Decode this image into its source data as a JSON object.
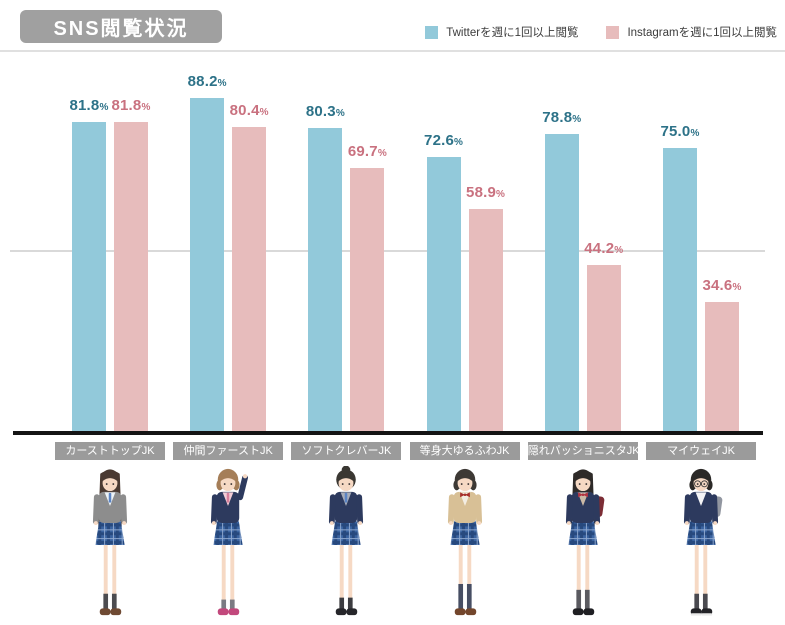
{
  "header": {
    "title": "SNS閲覧状況"
  },
  "legend": [
    {
      "label": "Twitterを週に1回以上閲覧",
      "color": "#92c9da"
    },
    {
      "label": "Instagramを週に1回以上閲覧",
      "color": "#e7bcbc"
    }
  ],
  "chart_data": {
    "type": "bar",
    "title": "SNS閲覧状況",
    "categories": [
      "カーストトップJK",
      "仲間ファーストJK",
      "ソフトクレバーJK",
      "等身大ゆるふわJK",
      "隠れパッショニスタJK",
      "マイウェイJK"
    ],
    "series": [
      {
        "name": "Twitterを週に1回以上閲覧",
        "color": "#92c9da",
        "label_color": "#2d7288",
        "values": [
          81.8,
          88.2,
          80.3,
          72.6,
          78.8,
          75.0
        ]
      },
      {
        "name": "Instagramを週に1回以上閲覧",
        "color": "#e7bcbc",
        "label_color": "#c9717f",
        "values": [
          81.8,
          80.4,
          69.7,
          58.9,
          44.2,
          34.6
        ]
      }
    ],
    "unit": "%",
    "ylim": [
      0,
      100
    ],
    "grid": "one light horizontal gridline near mid-height",
    "legend_position": "top-right",
    "value_labels": "above each bar, one decimal place with small % sign"
  },
  "characters": [
    {
      "category": "カーストトップJK",
      "hair_style": "long",
      "hair": "#4a3a32",
      "top": "#8d8d8d",
      "inner": "#eef4f8",
      "accent": "#5b84c4",
      "accent_type": "tie",
      "sock": "#4c4c50",
      "sock_len": 16,
      "shoe": "#6f4a33",
      "bag": null,
      "glasses": false,
      "raised": false
    },
    {
      "category": "仲間ファーストJK",
      "hair_style": "short",
      "hair": "#a57e58",
      "top": "#2d3a5e",
      "inner": "#f2cdd6",
      "accent": "#d77f9a",
      "accent_type": "tie",
      "sock": "#7b7b83",
      "sock_len": 10,
      "shoe": "#c2487c",
      "bag": null,
      "glasses": false,
      "raised": true
    },
    {
      "category": "ソフトクレバーJK",
      "hair_style": "bun",
      "hair": "#3a3732",
      "top": "#2d3a5e",
      "inner": "#a9aeb9",
      "accent": "#5b84c4",
      "accent_type": "tie",
      "sock": "#3c3c40",
      "sock_len": 12,
      "shoe": "#26262a",
      "bag": null,
      "glasses": false,
      "raised": false
    },
    {
      "category": "等身大ゆるふわJK",
      "hair_style": "bob",
      "hair": "#3d3935",
      "top": "#d8c096",
      "inner": "#f3ede2",
      "accent": "#a62f2a",
      "accent_type": "bow",
      "sock": "#474e63",
      "sock_len": 26,
      "shoe": "#73462c",
      "bag": null,
      "glasses": false,
      "raised": false
    },
    {
      "category": "隠れパッショニスタJK",
      "hair_style": "long",
      "hair": "#2e2a28",
      "top": "#2d3a5e",
      "inner": "#cbb9a6",
      "accent": "#b23342",
      "accent_type": "bow",
      "sock": "#5a5a60",
      "sock_len": 20,
      "shoe": "#1f1f23",
      "bag": "#7c2d35",
      "glasses": false,
      "raised": false
    },
    {
      "category": "マイウェイJK",
      "hair_style": "bob",
      "hair": "#2b2927",
      "top": "#2d3a5e",
      "inner": "#f4f4f6",
      "accent": null,
      "accent_type": null,
      "sock": "#4a4a50",
      "sock_len": 16,
      "shoe": "#232327",
      "bag": "#9196a0",
      "glasses": true,
      "raised": false
    }
  ],
  "palette": {
    "skin": "#f6d9c4",
    "skirt_base": "#3a63a0",
    "skirt_dark": "#27497e",
    "skirt_light": "#8fa9d0",
    "title_box_bg": "#a0a0a0",
    "category_box_bg": "#9b9b9b",
    "baseline": "#141414",
    "gridline": "#d9d9d9"
  }
}
